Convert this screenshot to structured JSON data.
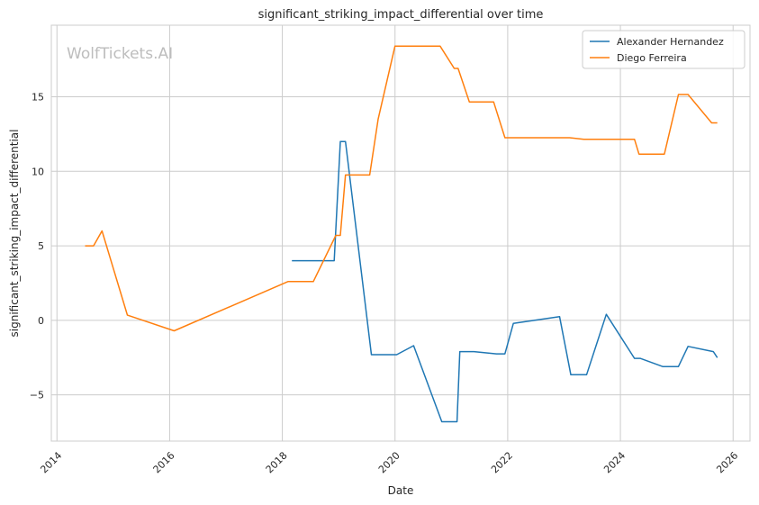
{
  "chart_data": {
    "type": "line",
    "title": "significant_striking_impact_differential over time",
    "xlabel": "Date",
    "ylabel": "significant_striking_impact_differential",
    "watermark": "WolfTickets.AI",
    "xlim": [
      2013.9,
      2026.3
    ],
    "ylim": [
      -8.1,
      19.8
    ],
    "xticks": [
      2014,
      2016,
      2018,
      2020,
      2022,
      2024,
      2026
    ],
    "yticks": [
      -5,
      0,
      5,
      10,
      15
    ],
    "ytick_labels": [
      "−5",
      "0",
      "5",
      "10",
      "15"
    ],
    "grid": true,
    "legend_position": "top-right",
    "series": [
      {
        "name": "Alexander Hernandez",
        "color": "#1f77b4",
        "points": [
          [
            2018.17,
            4.0
          ],
          [
            2018.92,
            4.0
          ],
          [
            2019.03,
            12.0
          ],
          [
            2019.12,
            12.0
          ],
          [
            2019.58,
            -2.3
          ],
          [
            2020.03,
            -2.3
          ],
          [
            2020.33,
            -1.7
          ],
          [
            2020.83,
            -6.8
          ],
          [
            2021.1,
            -6.8
          ],
          [
            2021.15,
            -2.1
          ],
          [
            2021.4,
            -2.1
          ],
          [
            2021.8,
            -2.25
          ],
          [
            2021.95,
            -2.25
          ],
          [
            2022.1,
            -0.2
          ],
          [
            2022.92,
            0.25
          ],
          [
            2023.12,
            -3.65
          ],
          [
            2023.4,
            -3.65
          ],
          [
            2023.75,
            0.4
          ],
          [
            2024.25,
            -2.55
          ],
          [
            2024.35,
            -2.55
          ],
          [
            2024.75,
            -3.1
          ],
          [
            2025.03,
            -3.1
          ],
          [
            2025.2,
            -1.75
          ],
          [
            2025.65,
            -2.1
          ],
          [
            2025.72,
            -2.5
          ]
        ]
      },
      {
        "name": "Diego Ferreira",
        "color": "#ff7f0e",
        "points": [
          [
            2014.5,
            5.0
          ],
          [
            2014.65,
            5.0
          ],
          [
            2014.8,
            6.0
          ],
          [
            2015.25,
            0.35
          ],
          [
            2016.08,
            -0.7
          ],
          [
            2018.1,
            2.6
          ],
          [
            2018.55,
            2.6
          ],
          [
            2018.95,
            5.7
          ],
          [
            2019.03,
            5.7
          ],
          [
            2019.12,
            9.75
          ],
          [
            2019.55,
            9.75
          ],
          [
            2019.7,
            13.5
          ],
          [
            2020.0,
            18.4
          ],
          [
            2020.8,
            18.4
          ],
          [
            2021.05,
            16.9
          ],
          [
            2021.12,
            16.9
          ],
          [
            2021.32,
            14.65
          ],
          [
            2021.75,
            14.65
          ],
          [
            2021.95,
            12.25
          ],
          [
            2023.1,
            12.25
          ],
          [
            2023.35,
            12.15
          ],
          [
            2024.25,
            12.15
          ],
          [
            2024.33,
            11.15
          ],
          [
            2024.78,
            11.15
          ],
          [
            2025.03,
            15.15
          ],
          [
            2025.2,
            15.15
          ],
          [
            2025.62,
            13.25
          ],
          [
            2025.72,
            13.25
          ]
        ]
      }
    ]
  }
}
